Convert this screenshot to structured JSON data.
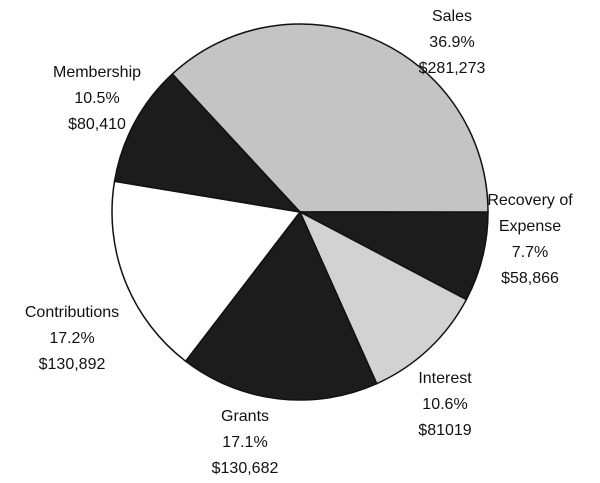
{
  "chart_data": {
    "type": "pie",
    "categories": [
      "Sales",
      "Recovery of Expense",
      "Interest",
      "Grants",
      "Contributions",
      "Membership"
    ],
    "values": [
      36.9,
      7.7,
      10.6,
      17.1,
      17.2,
      10.5
    ],
    "value_labels": [
      "36.9%",
      "7.7%",
      "10.6%",
      "17.1%",
      "17.2%",
      "10.5%"
    ],
    "amount_labels": [
      "$281,273",
      "$58,866",
      "$81019",
      "$130,682",
      "$130,892",
      "$80,410"
    ],
    "colors": [
      "#c4c4c4",
      "#1c1c1c",
      "#d2d2d2",
      "#1c1c1c",
      "#ffffff",
      "#1c1c1c"
    ]
  }
}
